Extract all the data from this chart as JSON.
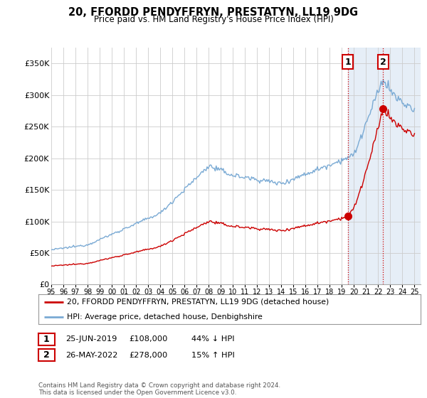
{
  "title": "20, FFORDD PENDYFFRYN, PRESTATYN, LL19 9DG",
  "subtitle": "Price paid vs. HM Land Registry's House Price Index (HPI)",
  "ylabel_ticks": [
    "£0",
    "£50K",
    "£100K",
    "£150K",
    "£200K",
    "£250K",
    "£300K",
    "£350K"
  ],
  "ytick_vals": [
    0,
    50000,
    100000,
    150000,
    200000,
    250000,
    300000,
    350000
  ],
  "ylim": [
    0,
    375000
  ],
  "xlim_start": 1995.0,
  "xlim_end": 2025.5,
  "hpi_color": "#7aaad4",
  "price_color": "#cc0000",
  "vline_color": "#cc0000",
  "shade_color": "#dce8f5",
  "grid_color": "#cccccc",
  "transaction1_x": 2019.48,
  "transaction1_y": 108000,
  "transaction2_x": 2022.4,
  "transaction2_y": 278000,
  "legend_entry1": "20, FFORDD PENDYFFRYN, PRESTATYN, LL19 9DG (detached house)",
  "legend_entry2": "HPI: Average price, detached house, Denbighshire",
  "table_row1_num": "1",
  "table_row1_date": "25-JUN-2019",
  "table_row1_price": "£108,000",
  "table_row1_hpi": "44% ↓ HPI",
  "table_row2_num": "2",
  "table_row2_date": "26-MAY-2022",
  "table_row2_price": "£278,000",
  "table_row2_hpi": "15% ↑ HPI",
  "footnote": "Contains HM Land Registry data © Crown copyright and database right 2024.\nThis data is licensed under the Open Government Licence v3.0.",
  "background_color": "#ffffff"
}
